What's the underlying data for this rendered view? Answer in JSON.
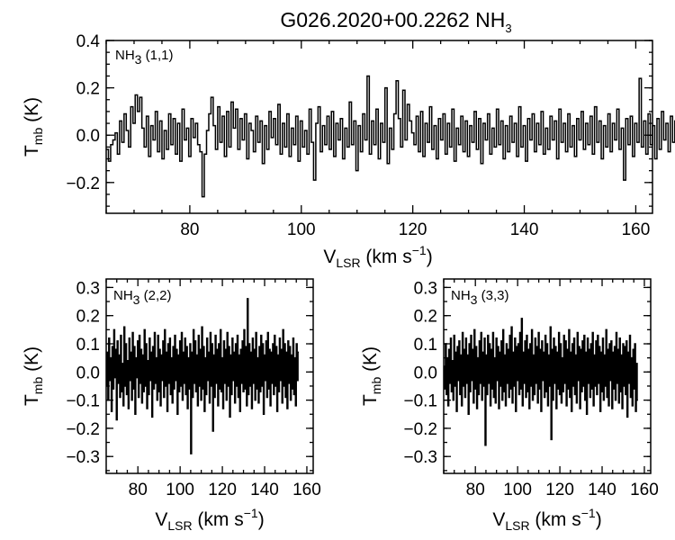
{
  "title": {
    "main": "G026.2020+00.2262 NH",
    "sub": "3"
  },
  "axis_text": {
    "x_main": "V",
    "x_sub": "LSR",
    "x_unit": " (km s",
    "x_exp": "−1",
    "x_close": ")",
    "y_main": "T",
    "y_sub": "mb",
    "y_unit": " (K)"
  },
  "chart_data": [
    {
      "type": "line",
      "label_main": "NH",
      "label_sub": "3",
      "label_transition": " (1,1)",
      "xlim": [
        65,
        163
      ],
      "ylim": [
        -0.33,
        0.4
      ],
      "xticks": [
        80,
        100,
        120,
        140,
        160
      ],
      "yticks": [
        -0.2,
        0.0,
        0.2,
        0.4
      ],
      "ytick_labels": [
        "−0.2",
        "0.0",
        "0.2",
        "0.4"
      ],
      "channel_width": 0.4,
      "values": [
        -0.06,
        -0.11,
        -0.04,
        -0.02,
        0.01,
        -0.08,
        0.06,
        -0.03,
        0.09,
        0.02,
        -0.05,
        0.12,
        0.05,
        0.17,
        0.1,
        0.16,
        0.03,
        -0.05,
        0.08,
        -0.09,
        0.04,
        -0.02,
        0.1,
        -0.07,
        0.06,
        -0.1,
        0.02,
        -0.06,
        0.09,
        -0.04,
        0.07,
        -0.08,
        0.05,
        -0.11,
        0.11,
        -0.02,
        0.03,
        -0.09,
        0.07,
        -0.01,
        0.05,
        -0.04,
        -0.07,
        -0.26,
        -0.08,
        0.02,
        0.09,
        0.16,
        0.04,
        -0.06,
        0.12,
        -0.03,
        0.08,
        -0.09,
        0.1,
        -0.05,
        0.14,
        0.03,
        0.11,
        -0.06,
        0.07,
        -0.02,
        0.09,
        -0.1,
        0.05,
        0.02,
        -0.07,
        0.08,
        -0.03,
        0.06,
        -0.12,
        0.04,
        -0.06,
        0.1,
        -0.01,
        0.07,
        -0.04,
        0.13,
        -0.08,
        0.05,
        -0.05,
        0.09,
        -0.09,
        0.03,
        -0.04,
        0.08,
        -0.11,
        0.06,
        -0.05,
        0.02,
        -0.08,
        0.11,
        -0.03,
        -0.19,
        0.05,
        0.12,
        -0.07,
        0.04,
        -0.04,
        0.08,
        -0.06,
        0.1,
        -0.09,
        0.05,
        -0.02,
        0.07,
        -0.1,
        0.03,
        -0.05,
        0.14,
        -0.04,
        0.06,
        -0.15,
        0.04,
        -0.07,
        0.09,
        -0.02,
        0.25,
        -0.08,
        0.06,
        -0.04,
        0.11,
        -0.1,
        0.05,
        -0.03,
        0.2,
        -0.12,
        0.03,
        -0.06,
        0.09,
        0.23,
        0.07,
        -0.05,
        0.19,
        -0.02,
        0.13,
        0.06,
        0.01,
        -0.04,
        0.08,
        -0.07,
        0.1,
        -0.09,
        0.05,
        -0.03,
        0.12,
        -0.06,
        0.04,
        -0.1,
        0.07,
        -0.02,
        0.09,
        -0.08,
        0.05,
        -0.05,
        0.11,
        -0.11,
        0.03,
        -0.04,
        0.08,
        -0.07,
        0.06,
        -0.09,
        0.04,
        -0.03,
        0.1,
        -0.06,
        0.07,
        -0.12,
        0.05,
        -0.02,
        0.09,
        -0.08,
        0.03,
        -0.05,
        0.11,
        -0.04,
        0.06,
        -0.1,
        0.04,
        -0.07,
        0.08,
        -0.03,
        0.05,
        -0.09,
        0.12,
        -0.05,
        0.04,
        -0.11,
        0.07,
        -0.02,
        0.09,
        -0.07,
        0.05,
        -0.04,
        0.1,
        -0.08,
        0.03,
        -0.06,
        0.08,
        -0.02,
        0.06,
        -0.1,
        0.11,
        -0.03,
        0.05,
        -0.07,
        0.09,
        -0.05,
        0.04,
        -0.09,
        0.07,
        -0.02,
        0.1,
        -0.06,
        0.05,
        -0.04,
        0.08,
        -0.08,
        0.12,
        -0.03,
        0.06,
        -0.1,
        0.04,
        -0.05,
        0.09,
        -0.07,
        0.05,
        -0.02,
        0.11,
        -0.06,
        0.03,
        -0.19,
        0.07,
        -0.04,
        0.08,
        -0.09,
        0.05,
        -0.03,
        0.24,
        -0.05,
        0.06,
        -0.08,
        0.09,
        -0.04,
        0.04,
        -0.1,
        0.07,
        -0.06,
        0.1,
        -0.02,
        0.05,
        -0.07,
        0.08,
        -0.03,
        0.06,
        -0.12,
        0.04,
        -0.05,
        0.11,
        -0.04,
        0.07,
        -0.09,
        0.05,
        -0.02,
        0.02,
        -0.13
      ]
    },
    {
      "type": "line",
      "label_main": "NH",
      "label_sub": "3",
      "label_transition": " (2,2)",
      "xlim": [
        65,
        163
      ],
      "ylim": [
        -0.36,
        0.33
      ],
      "xticks": [
        80,
        100,
        120,
        140,
        160
      ],
      "yticks": [
        -0.3,
        -0.2,
        -0.1,
        0.0,
        0.1,
        0.2,
        0.3
      ],
      "ytick_labels": [
        "−0.3",
        "−0.2",
        "−0.1",
        "0.0",
        "0.1",
        "0.2",
        "0.3"
      ],
      "channel_width": 0.4,
      "values": [
        -0.05,
        0.07,
        -0.1,
        0.12,
        -0.03,
        0.05,
        -0.14,
        0.09,
        -0.06,
        0.15,
        -0.02,
        0.08,
        -0.17,
        0.11,
        -0.04,
        0.06,
        -0.09,
        0.13,
        -0.07,
        0.03,
        -0.12,
        0.16,
        -0.05,
        0.1,
        -0.08,
        0.04,
        -0.13,
        0.12,
        -0.03,
        0.07,
        -0.1,
        0.14,
        -0.06,
        0.09,
        -0.15,
        0.05,
        -0.02,
        0.11,
        -0.09,
        0.13,
        -0.04,
        0.08,
        -0.11,
        0.06,
        -0.07,
        0.15,
        -0.05,
        0.1,
        -0.13,
        0.04,
        -0.08,
        0.12,
        -0.03,
        0.07,
        -0.16,
        0.09,
        -0.06,
        0.14,
        -0.04,
        0.05,
        -0.1,
        0.13,
        -0.07,
        0.08,
        -0.12,
        0.06,
        -0.03,
        0.11,
        -0.09,
        0.15,
        -0.05,
        0.07,
        -0.14,
        0.1,
        -0.04,
        0.12,
        -0.08,
        0.05,
        -0.11,
        0.09,
        -0.06,
        0.13,
        -0.03,
        0.08,
        -0.15,
        0.06,
        -0.07,
        0.11,
        -0.05,
        0.14,
        -0.1,
        0.07,
        -0.04,
        0.12,
        -0.08,
        0.09,
        -0.13,
        0.05,
        -0.06,
        0.1,
        -0.29,
        0.07,
        -0.09,
        0.15,
        -0.04,
        0.11,
        -0.07,
        0.06,
        -0.12,
        0.13,
        -0.05,
        0.08,
        -0.1,
        0.16,
        -0.06,
        0.09,
        -0.14,
        0.05,
        -0.08,
        0.12,
        -0.03,
        0.07,
        -0.11,
        0.14,
        -0.05,
        0.1,
        -0.21,
        0.06,
        -0.09,
        0.13,
        -0.04,
        0.08,
        -0.12,
        0.1,
        -0.06,
        0.15,
        -0.07,
        0.05,
        -0.13,
        0.11,
        -0.04,
        0.08,
        -0.1,
        0.14,
        -0.05,
        0.09,
        -0.16,
        0.06,
        -0.08,
        0.12,
        -0.03,
        0.07,
        -0.11,
        0.1,
        -0.05,
        0.13,
        -0.09,
        0.06,
        -0.14,
        0.08,
        -0.04,
        0.11,
        -0.07,
        0.15,
        -0.06,
        0.09,
        -0.12,
        0.26,
        -0.08,
        0.1,
        -0.05,
        0.07,
        -0.13,
        0.12,
        -0.04,
        0.08,
        -0.1,
        0.14,
        -0.06,
        0.05,
        -0.11,
        0.09,
        -0.07,
        0.13,
        -0.05,
        0.1,
        -0.15,
        0.06,
        -0.03,
        0.11,
        -0.09,
        0.14,
        -0.06,
        0.08,
        -0.12,
        0.07,
        -0.04,
        0.1,
        -0.08,
        0.13,
        -0.05,
        0.09,
        -0.14,
        0.06,
        -0.07,
        0.12,
        -0.03,
        0.08,
        -0.11,
        0.15,
        -0.05,
        0.1,
        -0.09,
        0.07,
        -0.13,
        0.11,
        -0.04,
        0.09,
        -0.1,
        0.06,
        -0.06,
        0.12,
        -0.08,
        0.05,
        -0.12,
        0.1,
        -0.03,
        0.07
      ]
    },
    {
      "type": "line",
      "label_main": "NH",
      "label_sub": "3",
      "label_transition": " (3,3)",
      "xlim": [
        65,
        163
      ],
      "ylim": [
        -0.36,
        0.33
      ],
      "xticks": [
        80,
        100,
        120,
        140,
        160
      ],
      "yticks": [
        -0.3,
        -0.2,
        -0.1,
        0.0,
        0.1,
        0.2,
        0.3
      ],
      "ytick_labels": [
        "−0.3",
        "−0.2",
        "−0.1",
        "0.0",
        "0.1",
        "0.2",
        "0.3"
      ],
      "channel_width": 0.4,
      "values": [
        0.02,
        -0.06,
        0.1,
        -0.08,
        0.05,
        -0.12,
        0.08,
        -0.04,
        0.12,
        -0.07,
        0.04,
        -0.1,
        0.13,
        -0.05,
        0.07,
        -0.14,
        0.09,
        -0.03,
        0.11,
        -0.08,
        0.06,
        -0.12,
        0.14,
        -0.05,
        0.08,
        -0.09,
        0.12,
        -0.04,
        0.06,
        -0.15,
        0.1,
        -0.07,
        0.13,
        -0.03,
        0.08,
        -0.11,
        0.15,
        -0.06,
        0.09,
        -0.13,
        0.05,
        -0.08,
        0.11,
        -0.04,
        0.14,
        -0.1,
        0.07,
        -0.05,
        0.12,
        -0.26,
        0.06,
        -0.08,
        0.13,
        -0.04,
        0.1,
        -0.12,
        0.08,
        -0.06,
        0.14,
        -0.09,
        0.05,
        -0.11,
        0.12,
        -0.03,
        0.09,
        -0.13,
        0.07,
        -0.05,
        0.11,
        -0.1,
        0.15,
        -0.07,
        0.06,
        -0.12,
        0.1,
        -0.04,
        0.08,
        -0.09,
        0.13,
        -0.06,
        0.16,
        -0.11,
        0.07,
        -0.05,
        0.12,
        -0.14,
        0.09,
        -0.03,
        0.1,
        -0.08,
        0.14,
        -0.06,
        0.19,
        -0.12,
        0.07,
        -0.04,
        0.11,
        -0.09,
        0.13,
        -0.07,
        0.08,
        -0.13,
        0.1,
        -0.05,
        0.15,
        -0.1,
        0.06,
        -0.08,
        0.12,
        -0.04,
        0.09,
        -0.11,
        0.14,
        -0.06,
        0.08,
        -0.14,
        0.11,
        -0.03,
        0.07,
        -0.09,
        0.13,
        -0.07,
        0.1,
        -0.12,
        0.06,
        -0.05,
        0.16,
        -0.24,
        0.08,
        -0.1,
        0.12,
        -0.04,
        0.09,
        -0.13,
        0.07,
        -0.06,
        0.14,
        -0.08,
        0.1,
        -0.11,
        0.05,
        -0.07,
        0.13,
        -0.04,
        0.11,
        -0.12,
        0.08,
        -0.06,
        0.15,
        -0.09,
        0.07,
        -0.14,
        0.1,
        -0.05,
        0.12,
        -0.08,
        0.06,
        -0.11,
        0.14,
        -0.03,
        0.09,
        -0.13,
        0.08,
        -0.07,
        0.11,
        -0.05,
        0.13,
        -0.1,
        0.07,
        -0.15,
        0.12,
        -0.04,
        0.08,
        -0.09,
        0.1,
        -0.06,
        0.14,
        -0.12,
        0.06,
        -0.05,
        0.11,
        -0.08,
        0.13,
        -0.04,
        0.09,
        -0.14,
        0.07,
        -0.07,
        0.12,
        -0.1,
        0.06,
        -0.05,
        0.15,
        -0.09,
        0.08,
        -0.12,
        0.1,
        -0.03,
        0.11,
        -0.13,
        0.07,
        -0.06,
        0.09,
        -0.1,
        0.14,
        -0.04,
        0.08,
        -0.11,
        0.12,
        -0.07,
        0.06,
        -0.13,
        0.1,
        -0.05,
        0.09,
        -0.08,
        0.11,
        -0.16,
        0.07,
        -0.04,
        0.13,
        -0.09,
        0.05,
        -0.12,
        0.08,
        -0.06,
        0.1,
        -0.14,
        0.03,
        -0.1
      ]
    }
  ]
}
